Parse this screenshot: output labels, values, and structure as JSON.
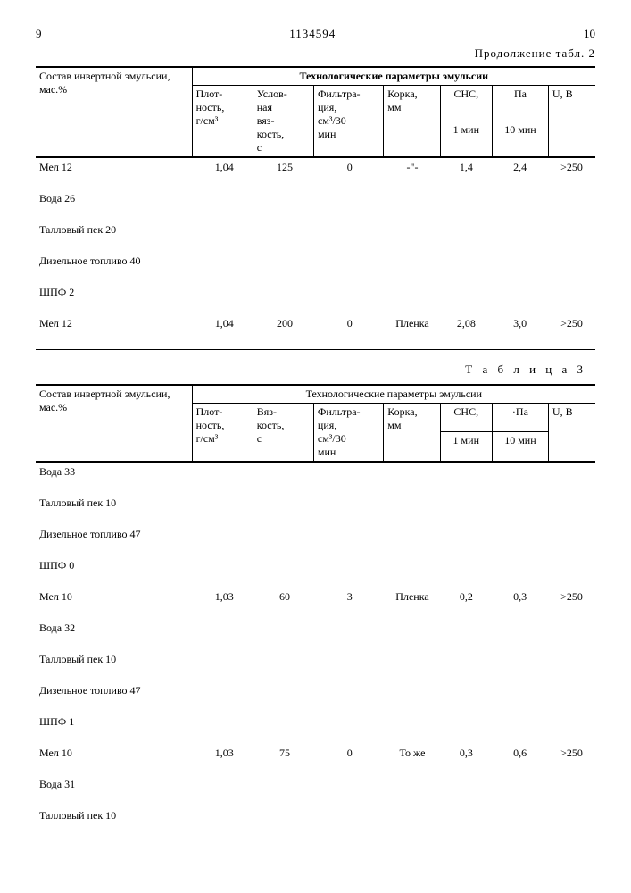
{
  "header": {
    "page_left": "9",
    "doc_number": "1134594",
    "page_right": "10",
    "continuation": "Продолжение табл. 2"
  },
  "tables": {
    "t2": {
      "col_label_comp": "Состав инвертной эмульсии, мас.%",
      "group_label": "Технологические параметры эмульсии",
      "h_plot": "Плот-\nность,\nг/см³",
      "h_visc": "Услов-\nная\nвяз-\nкость,\nс",
      "h_filt": "Фильтра-\nция,\nсм³/30\nмин",
      "h_korka": "Корка,\nмм",
      "h_snc": "СНС,",
      "h_pa": "Па",
      "h_1min": "1 мин",
      "h_10min": "10 мин",
      "h_ub": "U, В",
      "rows": [
        {
          "comp": "Мел 12",
          "v": [
            "1,04",
            "125",
            "0",
            "-\"-",
            "1,4",
            "2,4",
            ">250"
          ]
        },
        {
          "comp": "Вода 26",
          "v": [
            "",
            "",
            "",
            "",
            "",
            "",
            ""
          ]
        },
        {
          "comp": "Талловый пек 20",
          "v": [
            "",
            "",
            "",
            "",
            "",
            "",
            ""
          ]
        },
        {
          "comp": "Дизельное топливо 40",
          "v": [
            "",
            "",
            "",
            "",
            "",
            "",
            ""
          ]
        },
        {
          "comp": "ШПФ 2",
          "v": [
            "",
            "",
            "",
            "",
            "",
            "",
            ""
          ]
        },
        {
          "comp": "Мел 12",
          "v": [
            "1,04",
            "200",
            "0",
            "Пленка",
            "2,08",
            "3,0",
            ">250"
          ]
        }
      ]
    },
    "t3": {
      "title": "Т а б л и ц а   3",
      "col_label_comp": "Состав инвертной эмульсии, мас.%",
      "group_label": "Технологические параметры эмульсии",
      "h_plot": "Плот-\nность,\nг/см³",
      "h_visc": "Вяз-\nкость,\nс",
      "h_filt": "Фильтра-\nция,\nсм³/30\nмин",
      "h_korka": "Корка,\nмм",
      "h_snc": "СНС,",
      "h_pa": "·Па",
      "h_1min": "1 мин",
      "h_10min": "10 мин",
      "h_ub": "U, В",
      "rows": [
        {
          "comp": "Вода 33",
          "v": [
            "",
            "",
            "",
            "",
            "",
            "",
            ""
          ]
        },
        {
          "comp": "Талловый пек 10",
          "v": [
            "",
            "",
            "",
            "",
            "",
            "",
            ""
          ]
        },
        {
          "comp": "Дизельное топливо 47",
          "v": [
            "",
            "",
            "",
            "",
            "",
            "",
            ""
          ]
        },
        {
          "comp": "ШПФ 0",
          "v": [
            "",
            "",
            "",
            "",
            "",
            "",
            ""
          ]
        },
        {
          "comp": "Мел 10",
          "v": [
            "1,03",
            "60",
            "3",
            "Пленка",
            "0,2",
            "0,3",
            ">250"
          ]
        },
        {
          "comp": "Вода 32",
          "v": [
            "",
            "",
            "",
            "",
            "",
            "",
            ""
          ]
        },
        {
          "comp": "Талловый пек 10",
          "v": [
            "",
            "",
            "",
            "",
            "",
            "",
            ""
          ]
        },
        {
          "comp": "Дизельное топливо 47",
          "v": [
            "",
            "",
            "",
            "",
            "",
            "",
            ""
          ]
        },
        {
          "comp": "ШПФ 1",
          "v": [
            "",
            "",
            "",
            "",
            "",
            "",
            ""
          ]
        },
        {
          "comp": "Мел 10",
          "v": [
            "1,03",
            "75",
            "0",
            "То же",
            "0,3",
            "0,6",
            ">250"
          ]
        },
        {
          "comp": "Вода 31",
          "v": [
            "",
            "",
            "",
            "",
            "",
            "",
            ""
          ]
        },
        {
          "comp": "Талловый пек 10",
          "v": [
            "",
            "",
            "",
            "",
            "",
            "",
            ""
          ]
        }
      ]
    }
  }
}
